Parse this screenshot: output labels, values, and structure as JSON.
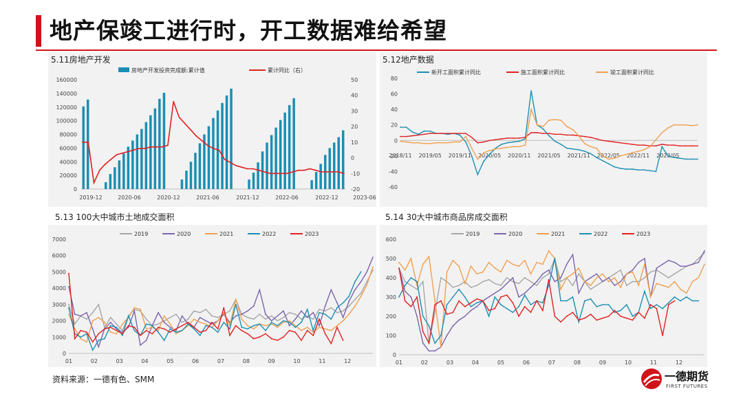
{
  "page": {
    "title": "地产保竣工进行时，开工数据难给希望",
    "source": "资料来源：一德有色、SMM",
    "logo_name": "一德期货",
    "logo_en": "FIRST FUTURES"
  },
  "colors": {
    "accent": "#d0131a",
    "panel_bg": "#f2f2f2",
    "bar": "#1b8eb3",
    "c2019": "#a6a6a6",
    "c2020": "#7a64ad",
    "c2021": "#f0a050",
    "c2022": "#1b8eb3",
    "c2023": "#e02020"
  },
  "chart_data": [
    {
      "id": "5.11",
      "panel_title": "5.11房地产开发",
      "type": "bar+line",
      "bar_series_name": "房地产开发投资完成额:累计值",
      "line_series_name": "累计同比（右）",
      "y_left_ticks": [
        "0",
        "20000",
        "40000",
        "60000",
        "80000",
        "100000",
        "120000",
        "140000",
        "160000"
      ],
      "y_left_range": [
        0,
        160000
      ],
      "y_right_ticks": [
        "50",
        "40",
        "30",
        "20",
        "10",
        "0",
        "-10",
        "-20"
      ],
      "y_right_range": [
        -20,
        50
      ],
      "x_tick_labels": [
        "2019-12",
        "2020-06",
        "2020-12",
        "2021-06",
        "2021-12",
        "2022-06",
        "2022-12",
        "2023-06"
      ],
      "bars": [
        121000,
        131000,
        0,
        0,
        0,
        10000,
        22000,
        32000,
        42000,
        52000,
        62000,
        71000,
        80000,
        88000,
        98000,
        108000,
        118000,
        132000,
        141000,
        0,
        0,
        0,
        14000,
        27000,
        40000,
        53000,
        67000,
        80000,
        92000,
        104000,
        115000,
        126000,
        137000,
        147000,
        0,
        0,
        0,
        14000,
        24000,
        39000,
        55000,
        68000,
        79000,
        90000,
        101000,
        112000,
        123000,
        133000,
        0,
        0,
        0,
        13000,
        25000,
        37000,
        50000,
        60000,
        68000,
        76000,
        86000
      ],
      "line": [
        10,
        10,
        -16,
        -8,
        -4,
        -1,
        2,
        3,
        4,
        5,
        6,
        6,
        7,
        7,
        7,
        8,
        36,
        26,
        22,
        18,
        14,
        11,
        8,
        6,
        5,
        -1,
        -3,
        -5,
        -6,
        -7,
        -7,
        -8,
        -9,
        -10,
        -10,
        -10,
        -10,
        -9,
        -8,
        -8,
        -7,
        -8,
        -9,
        -9,
        -9,
        -9,
        -10
      ]
    },
    {
      "id": "5.12",
      "panel_title": "5.12地产数据",
      "type": "line",
      "y_ticks": [
        "80",
        "60",
        "40",
        "20",
        "0",
        "-20",
        "-40",
        "-60"
      ],
      "y_range": [
        -60,
        80
      ],
      "x_tick_labels": [
        "2018/11",
        "2019/05",
        "2019/11",
        "2020/05",
        "2020/11",
        "2021/05",
        "2021/11",
        "2022/05",
        "2022/11",
        "2023/05"
      ],
      "series": [
        {
          "name": "新开工面积累计同比",
          "color_key": "c2022",
          "values": [
            17,
            17,
            11,
            8,
            12,
            12,
            9,
            9,
            8,
            9,
            7,
            -2,
            -20,
            -44,
            -27,
            -18,
            -10,
            -5,
            -3,
            -2,
            -1,
            2,
            64,
            20,
            15,
            6,
            -1,
            -5,
            -10,
            -11,
            -12,
            -14,
            -17,
            -22,
            -26,
            -30,
            -34,
            -36,
            -37,
            -37,
            -38,
            -38,
            -39,
            -40,
            -8,
            -20,
            -22,
            -23,
            -24,
            -24,
            -24
          ]
        },
        {
          "name": "施工面积累计同比",
          "color_key": "c2023",
          "values": [
            5,
            5,
            6,
            7,
            8,
            9,
            9,
            9,
            9,
            9,
            9,
            9,
            4,
            -3,
            -2,
            0,
            1,
            2,
            3,
            3,
            3,
            4,
            10,
            10,
            9,
            9,
            8,
            8,
            7,
            7,
            6,
            5,
            4,
            2,
            0,
            -1,
            -2,
            -3,
            -4,
            -5,
            -6,
            -6,
            -7,
            -7,
            -5,
            -6,
            -6,
            -7,
            -7,
            -7,
            -7
          ]
        },
        {
          "name": "竣工面积累计同比",
          "color_key": "c2021",
          "values": [
            -1,
            -2,
            -3,
            -3,
            -4,
            -4,
            -3,
            -3,
            -3,
            -2,
            -2,
            5,
            -10,
            -24,
            -16,
            -13,
            -11,
            -10,
            -9,
            -8,
            -8,
            -6,
            40,
            20,
            18,
            26,
            27,
            26,
            18,
            14,
            6,
            -4,
            -8,
            -10,
            -20,
            -24,
            -23,
            -20,
            -18,
            -16,
            -14,
            -12,
            -8,
            1,
            10,
            16,
            20,
            20,
            20,
            19,
            20
          ]
        }
      ]
    },
    {
      "id": "5.13",
      "panel_title": "5.13 100大中城市土地成交面积",
      "type": "line",
      "y_ticks": [
        "7000",
        "6000",
        "5000",
        "4000",
        "3000",
        "2000",
        "1000",
        "0"
      ],
      "y_range": [
        0,
        7000
      ],
      "x_tick_labels": [
        "01",
        "02",
        "03",
        "04",
        "05",
        "06",
        "07",
        "08",
        "09",
        "10",
        "11",
        "12"
      ],
      "series": [
        {
          "name": "2019",
          "color_key": "c2019",
          "values": [
            3000,
            1800,
            2300,
            2100,
            2500,
            3000,
            1600,
            2200,
            1800,
            1400,
            2300,
            2700,
            2600,
            2100,
            1700,
            1800,
            2000,
            2200,
            2400,
            1900,
            2100,
            2600,
            2500,
            2700,
            2300,
            2200,
            2400,
            2600,
            3300,
            2400,
            2200,
            2100,
            2400,
            2100,
            2300,
            2000,
            2200,
            2500,
            2400,
            2100,
            2300,
            2100,
            2700,
            2600,
            2800,
            2500,
            2600,
            2900,
            3300,
            3700,
            4400,
            5100
          ]
        },
        {
          "name": "2020",
          "color_key": "c2020",
          "values": [
            4100,
            2400,
            2300,
            2500,
            1500,
            400,
            1500,
            1900,
            1500,
            1300,
            1600,
            2600,
            500,
            800,
            1700,
            2500,
            1900,
            1600,
            1400,
            2300,
            1800,
            1600,
            2200,
            2000,
            1800,
            2000,
            2400,
            1900,
            2300,
            2400,
            2600,
            2900,
            3900,
            2400,
            2000,
            2300,
            2600,
            1700,
            2100,
            2600,
            2200,
            2500,
            1700,
            2900,
            3900,
            3100,
            2200,
            3200,
            3900,
            4400,
            5000,
            5900
          ]
        },
        {
          "name": "2021",
          "color_key": "c2021",
          "values": [
            2400,
            1500,
            900,
            700,
            2000,
            2200,
            1900,
            1300,
            1200,
            1800,
            2200,
            2800,
            2700,
            1500,
            1600,
            1400,
            2300,
            1800,
            1200,
            1400,
            1700,
            2100,
            1900,
            1800,
            1600,
            2000,
            2500,
            1700,
            3300,
            2100,
            1700,
            1500,
            1800,
            1700,
            1800,
            1600,
            1900,
            2000,
            1700,
            1400,
            1600,
            1300,
            1600,
            1500,
            1400,
            1700,
            2000,
            2400,
            2900,
            3500,
            4200,
            5300
          ]
        },
        {
          "name": "2022",
          "color_key": "c2022",
          "values": [
            2800,
            1200,
            1000,
            1200,
            200,
            800,
            900,
            1700,
            1600,
            1100,
            2300,
            1400,
            1100,
            1800,
            1700,
            1300,
            800,
            1500,
            1300,
            1400,
            1800,
            1500,
            1100,
            1700,
            1600,
            1300,
            1900,
            1500,
            3000,
            1600,
            1500,
            1700,
            1800,
            1400,
            1900,
            1700,
            2000,
            1900,
            1600,
            1900,
            2700,
            1400,
            2500,
            2400,
            2100,
            2800,
            3100,
            3500,
            4400,
            5000
          ]
        },
        {
          "name": "2023",
          "color_key": "c2023",
          "values": [
            4900,
            900,
            1400,
            1300,
            700,
            1200,
            1500,
            1600,
            1400,
            1200,
            1700,
            1600,
            1100,
            1400,
            1200,
            1600,
            1500,
            1300,
            1500,
            1700,
            1900,
            1600,
            1300,
            1400,
            1900,
            1500,
            2800,
            1100,
            1700,
            1400,
            1200,
            900,
            1000,
            1200,
            900,
            800,
            1000,
            1400,
            1300,
            800,
            1400,
            1100,
            2100,
            1200,
            600,
            1600,
            800
          ]
        }
      ]
    },
    {
      "id": "5.14",
      "panel_title": "5.14 30大中城市商品房成交面积",
      "type": "line",
      "y_ticks": [
        "600",
        "500",
        "400",
        "300",
        "200",
        "100",
        "0"
      ],
      "y_range": [
        0,
        600
      ],
      "x_tick_labels": [
        "01",
        "02",
        "03",
        "04",
        "05",
        "06",
        "07",
        "08",
        "09",
        "10",
        "11",
        "12"
      ],
      "series": [
        {
          "name": "2019",
          "color_key": "c2019",
          "values": [
            450,
            380,
            360,
            340,
            380,
            60,
            220,
            400,
            380,
            350,
            360,
            380,
            350,
            360,
            380,
            390,
            370,
            360,
            400,
            380,
            370,
            400,
            380,
            360,
            400,
            420,
            500,
            380,
            400,
            360,
            420,
            380,
            340,
            360,
            380,
            400,
            420,
            440,
            360,
            380,
            380,
            400,
            430,
            440,
            420,
            400,
            420,
            440,
            460,
            470,
            500,
            530
          ]
        },
        {
          "name": "2020",
          "color_key": "c2020",
          "values": [
            450,
            330,
            300,
            200,
            60,
            20,
            20,
            40,
            100,
            150,
            180,
            200,
            230,
            250,
            280,
            300,
            320,
            340,
            370,
            400,
            300,
            320,
            350,
            380,
            420,
            440,
            380,
            400,
            470,
            520,
            320,
            380,
            400,
            420,
            380,
            400,
            360,
            380,
            420,
            440,
            480,
            500,
            300,
            450,
            470,
            490,
            480,
            460,
            460,
            470,
            480,
            540
          ]
        },
        {
          "name": "2021",
          "color_key": "c2021",
          "values": [
            480,
            440,
            500,
            360,
            470,
            510,
            280,
            40,
            430,
            490,
            460,
            370,
            460,
            420,
            430,
            480,
            450,
            430,
            490,
            470,
            460,
            490,
            420,
            480,
            470,
            540,
            500,
            340,
            400,
            420,
            450,
            380,
            360,
            400,
            420,
            380,
            400,
            350,
            420,
            430,
            360,
            470,
            300,
            370,
            360,
            350,
            380,
            340,
            320,
            380,
            400,
            470
          ]
        },
        {
          "name": "2022",
          "color_key": "c2022",
          "values": [
            300,
            360,
            400,
            380,
            200,
            150,
            60,
            100,
            260,
            300,
            340,
            300,
            250,
            270,
            280,
            200,
            300,
            260,
            240,
            220,
            250,
            310,
            260,
            280,
            270,
            360,
            500,
            280,
            280,
            300,
            170,
            280,
            290,
            250,
            260,
            260,
            220,
            230,
            260,
            200,
            220,
            330,
            240,
            260,
            240,
            270,
            300,
            280,
            300,
            280,
            280
          ]
        },
        {
          "name": "2023",
          "color_key": "c2023",
          "values": [
            450,
            280,
            250,
            300,
            120,
            60,
            260,
            280,
            210,
            220,
            280,
            250,
            270,
            290,
            280,
            230,
            240,
            300,
            310,
            270,
            200,
            250,
            220,
            280,
            230,
            390,
            200,
            170,
            200,
            220,
            180,
            190,
            210,
            180,
            190,
            200,
            230,
            200,
            190,
            180,
            220,
            190,
            260,
            240,
            100,
            260,
            280
          ]
        }
      ]
    }
  ]
}
